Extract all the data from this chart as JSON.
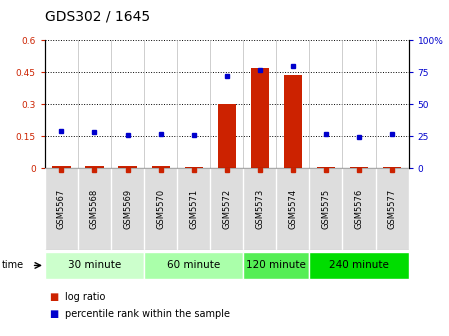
{
  "title": "GDS302 / 1645",
  "samples": [
    "GSM5567",
    "GSM5568",
    "GSM5569",
    "GSM5570",
    "GSM5571",
    "GSM5572",
    "GSM5573",
    "GSM5574",
    "GSM5575",
    "GSM5576",
    "GSM5577"
  ],
  "log_ratio": [
    0.008,
    0.008,
    0.008,
    0.008,
    0.004,
    0.3,
    0.47,
    0.435,
    0.006,
    0.005,
    0.005
  ],
  "percentile_rank": [
    29,
    28,
    26,
    27,
    26,
    72,
    77,
    80,
    27,
    24,
    27
  ],
  "left_ylim": [
    0,
    0.6
  ],
  "right_ylim": [
    0,
    100
  ],
  "left_yticks": [
    0,
    0.15,
    0.3,
    0.45,
    0.6
  ],
  "right_yticks": [
    0,
    25,
    50,
    75,
    100
  ],
  "left_ytick_labels": [
    "0",
    "0.15",
    "0.3",
    "0.45",
    "0.6"
  ],
  "right_ytick_labels": [
    "0",
    "25",
    "50",
    "75",
    "100%"
  ],
  "groups": [
    {
      "label": "30 minute",
      "indices": [
        0,
        1,
        2
      ],
      "color": "#ccffcc"
    },
    {
      "label": "60 minute",
      "indices": [
        3,
        4,
        5
      ],
      "color": "#aaffaa"
    },
    {
      "label": "120 minute",
      "indices": [
        6,
        7
      ],
      "color": "#55ee55"
    },
    {
      "label": "240 minute",
      "indices": [
        8,
        9,
        10
      ],
      "color": "#00dd00"
    }
  ],
  "bar_color": "#cc2200",
  "dot_color": "#0000cc",
  "bg_color": "#ffffff",
  "tick_label_fontsize": 6.5,
  "title_fontsize": 10,
  "group_label_fontsize": 7.5,
  "sample_label_fontsize": 6,
  "time_label": "time",
  "legend_items": [
    {
      "color": "#cc2200",
      "label": "log ratio"
    },
    {
      "color": "#0000cc",
      "label": "percentile rank within the sample"
    }
  ]
}
